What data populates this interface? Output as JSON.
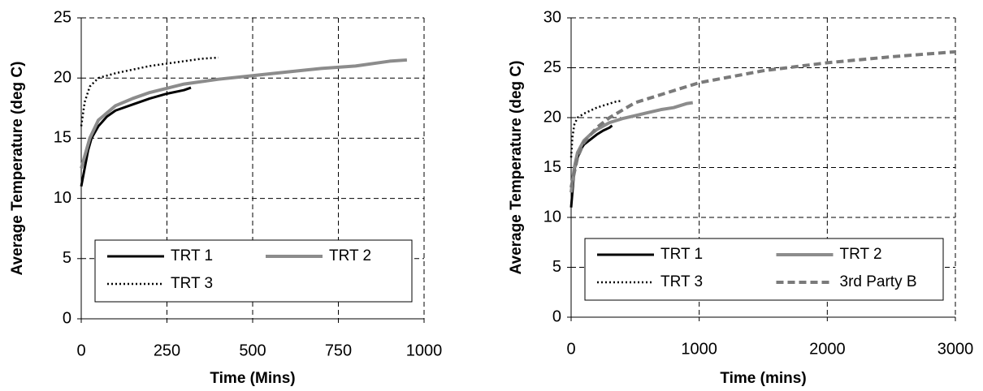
{
  "chart_data": [
    {
      "type": "line",
      "xlabel": "Time (Mins)",
      "ylabel": "Average Temperature (deg C)",
      "xlim": [
        0,
        1000
      ],
      "ylim": [
        0,
        25
      ],
      "xticks": [
        0,
        250,
        500,
        750,
        1000
      ],
      "yticks": [
        0,
        5,
        10,
        15,
        20,
        25
      ],
      "grid": true,
      "legend": "bottom",
      "series": [
        {
          "name": "TRT 1",
          "color": "#000000",
          "style": "solid",
          "x": [
            0,
            10,
            20,
            30,
            50,
            75,
            100,
            150,
            200,
            250,
            300,
            320
          ],
          "values": [
            11,
            12.5,
            14,
            15,
            16,
            16.8,
            17.3,
            17.8,
            18.3,
            18.7,
            19,
            19.2
          ]
        },
        {
          "name": "TRT 2",
          "color": "#8c8c8c",
          "style": "solid",
          "x": [
            0,
            10,
            25,
            50,
            100,
            150,
            200,
            300,
            400,
            500,
            600,
            700,
            800,
            900,
            950
          ],
          "values": [
            12.5,
            13.5,
            15,
            16.5,
            17.7,
            18.3,
            18.8,
            19.5,
            19.9,
            20.2,
            20.5,
            20.8,
            21,
            21.4,
            21.5
          ]
        },
        {
          "name": "TRT 3",
          "color": "#000000",
          "style": "dotted",
          "x": [
            0,
            10,
            25,
            50,
            100,
            150,
            200,
            250,
            300,
            350,
            400
          ],
          "values": [
            16,
            18,
            19.3,
            20,
            20.4,
            20.7,
            21,
            21.2,
            21.4,
            21.6,
            21.7
          ]
        }
      ]
    },
    {
      "type": "line",
      "xlabel": "Time (mins)",
      "ylabel": "Average Temperature (deg C)",
      "xlim": [
        0,
        3000
      ],
      "ylim": [
        0,
        30
      ],
      "xticks": [
        0,
        1000,
        2000,
        3000
      ],
      "yticks": [
        0,
        5,
        10,
        15,
        20,
        25,
        30
      ],
      "grid": true,
      "legend": "bottom",
      "series": [
        {
          "name": "TRT 1",
          "color": "#000000",
          "style": "solid",
          "x": [
            0,
            10,
            20,
            30,
            50,
            75,
            100,
            150,
            200,
            250,
            300,
            320
          ],
          "values": [
            11,
            12.5,
            14,
            15,
            16,
            16.8,
            17.3,
            17.8,
            18.3,
            18.7,
            19,
            19.2
          ]
        },
        {
          "name": "TRT 2",
          "color": "#8c8c8c",
          "style": "solid",
          "x": [
            0,
            10,
            25,
            50,
            100,
            150,
            200,
            300,
            400,
            500,
            600,
            700,
            800,
            900,
            950
          ],
          "values": [
            12.5,
            13.5,
            15,
            16.5,
            17.7,
            18.3,
            18.8,
            19.5,
            19.9,
            20.2,
            20.5,
            20.8,
            21,
            21.4,
            21.5
          ]
        },
        {
          "name": "TRT 3",
          "color": "#000000",
          "style": "dotted",
          "x": [
            0,
            10,
            25,
            50,
            100,
            150,
            200,
            250,
            300,
            350,
            400
          ],
          "values": [
            16,
            18,
            19.3,
            20,
            20.4,
            20.7,
            21,
            21.2,
            21.4,
            21.6,
            21.7
          ]
        },
        {
          "name": "3rd Party B",
          "color": "#7a7a7a",
          "style": "dashed",
          "x": [
            0,
            50,
            100,
            200,
            300,
            500,
            750,
            1000,
            1500,
            2000,
            2500,
            3000
          ],
          "values": [
            13,
            16,
            17.5,
            19,
            20,
            21.5,
            22.5,
            23.5,
            24.7,
            25.5,
            26.1,
            26.6
          ]
        }
      ]
    }
  ]
}
